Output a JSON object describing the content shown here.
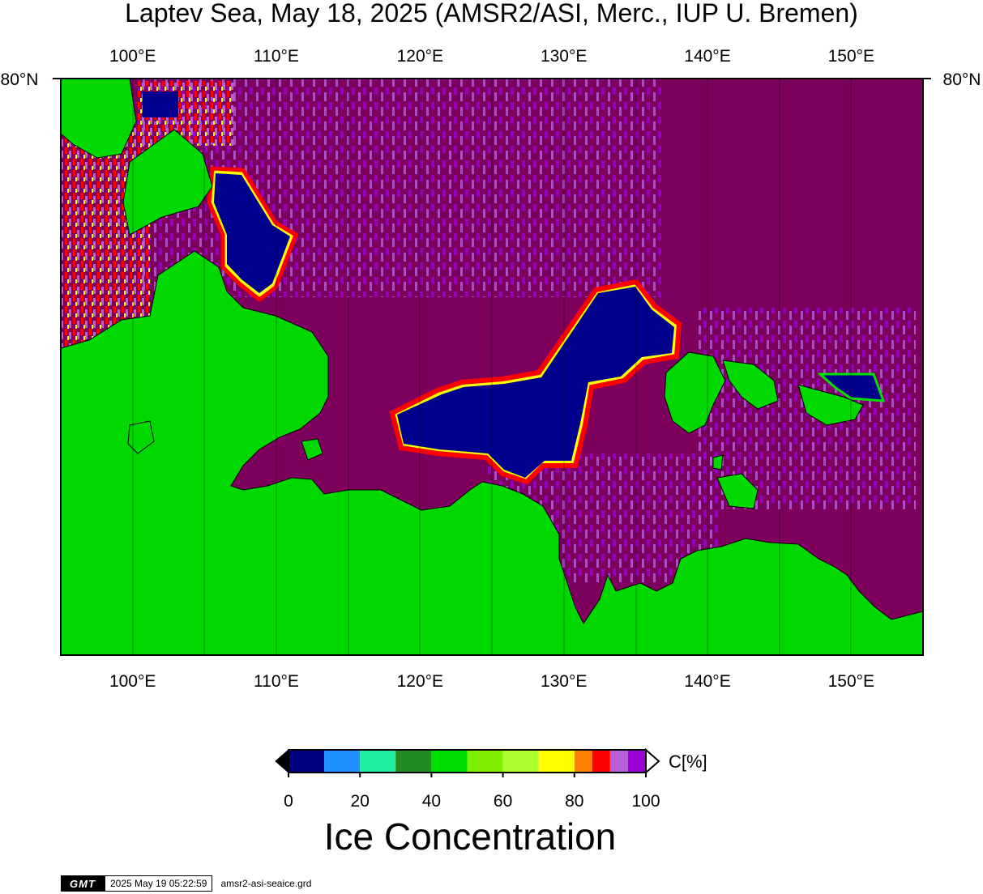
{
  "title": "Laptev Sea, May 18, 2025 (AMSR2/ASI, Merc., IUP U. Bremen)",
  "map": {
    "lon_labels": [
      "100°E",
      "110°E",
      "120°E",
      "130°E",
      "140°E",
      "150°E"
    ],
    "lon_values": [
      100,
      110,
      120,
      130,
      140,
      150
    ],
    "lon_range": [
      95,
      155
    ],
    "lat_label_left": "80°N",
    "lat_label_right": "80°N",
    "colors": {
      "land": "#00d800",
      "open_water": "#00008c",
      "ice_100": "#7d005d",
      "ice_95": "#9a00d5",
      "ice_90": "#b95fdc",
      "coastline": "#000000"
    }
  },
  "colorbar": {
    "unit": "C[%]",
    "title": "Ice Concentration",
    "ticks": [
      "0",
      "20",
      "40",
      "60",
      "80",
      "100"
    ],
    "tick_values": [
      0,
      20,
      40,
      60,
      80,
      100
    ],
    "colors": [
      "#000080",
      "#1e90ff",
      "#20f0a0",
      "#228b22",
      "#00e000",
      "#7cf000",
      "#adff2f",
      "#ffff00",
      "#ff7f00",
      "#ff0000",
      "#b95fdc",
      "#9a00d5"
    ],
    "bounds": [
      0,
      10,
      20,
      30,
      40,
      50,
      60,
      70,
      80,
      85,
      90,
      95,
      100
    ]
  },
  "footer": {
    "logo": "GMT",
    "timestamp": "2025 May 19 05:22:59",
    "file": "amsr2-asi-seaice.grd"
  }
}
